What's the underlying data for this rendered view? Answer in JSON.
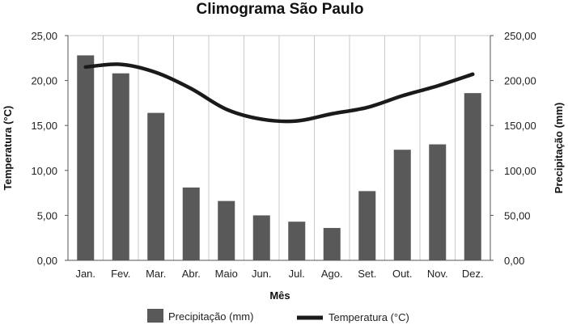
{
  "chart_data": {
    "type": "bar",
    "title": "Climograma São Paulo",
    "xlabel": "Mês",
    "ylabel_left": "Temperatura (°C)",
    "ylabel_right": "Precipitação (mm)",
    "categories": [
      "Jan.",
      "Fev.",
      "Mar.",
      "Abr.",
      "Maio",
      "Jun.",
      "Jul.",
      "Ago.",
      "Set.",
      "Out.",
      "Nov.",
      "Dez."
    ],
    "y_left": {
      "min": 0,
      "max": 25,
      "step": 5,
      "tick_labels": [
        "0,00",
        "5,00",
        "10,00",
        "15,00",
        "20,00",
        "25,00"
      ]
    },
    "y_right": {
      "min": 0,
      "max": 250,
      "step": 50,
      "tick_labels": [
        "0,00",
        "50,00",
        "100,00",
        "150,00",
        "200,00",
        "250,00"
      ]
    },
    "grid": "vertical",
    "legend_position": "bottom",
    "series": [
      {
        "name": "Precipitação (mm)",
        "type": "bar",
        "axis": "right",
        "color": "#595959",
        "values": [
          228,
          208,
          164,
          81,
          66,
          50,
          43,
          36,
          77,
          123,
          129,
          186
        ]
      },
      {
        "name": "Temperatura (°C)",
        "type": "line",
        "axis": "left",
        "color": "#1a1a1a",
        "values": [
          21.5,
          21.8,
          20.9,
          19.1,
          16.8,
          15.7,
          15.5,
          16.3,
          17.0,
          18.3,
          19.4,
          20.7
        ]
      }
    ]
  }
}
